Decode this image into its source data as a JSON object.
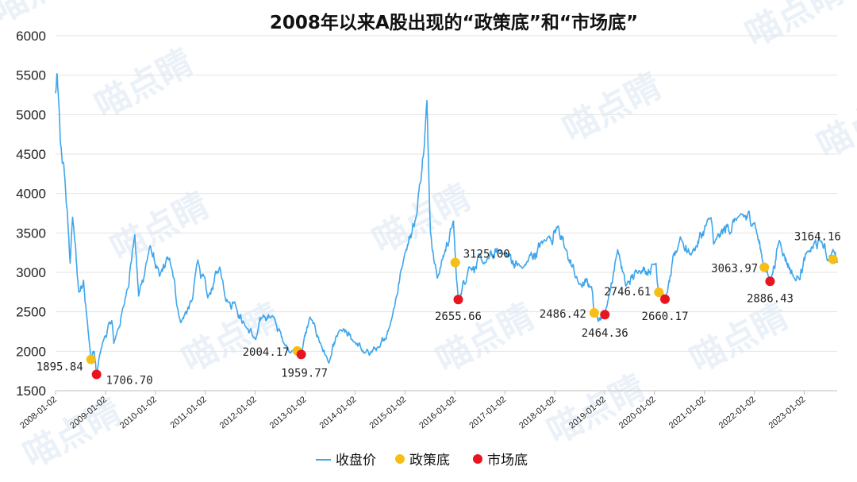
{
  "watermark": "喵点睛",
  "chart_data": {
    "type": "line",
    "title": "2008年以来A股出现的“政策底”和“市场底”",
    "xlabel": "",
    "ylabel": "",
    "ylim": [
      1500,
      6000
    ],
    "y_ticks": [
      1500,
      2000,
      2500,
      3000,
      3500,
      4000,
      4500,
      5000,
      5500,
      6000
    ],
    "x_range": [
      "2008-01-02",
      "2023-08-31"
    ],
    "x_ticks": [
      "2008-01-02",
      "2009-01-02",
      "2010-01-02",
      "2011-01-02",
      "2012-01-02",
      "2013-01-02",
      "2014-01-02",
      "2015-01-02",
      "2016-01-02",
      "2017-01-02",
      "2018-01-02",
      "2019-01-02",
      "2020-01-02",
      "2021-01-02",
      "2022-01-02",
      "2023-01-02"
    ],
    "grid": true,
    "legend_position": "bottom",
    "colors": {
      "line": "#3ea6ec",
      "policy_bottom": "#f5bf18",
      "market_bottom": "#e8141e"
    },
    "series": [
      {
        "name": "收盘价",
        "type": "line",
        "points": [
          [
            "2008-01-02",
            5272
          ],
          [
            "2008-01-15",
            5497
          ],
          [
            "2008-02-05",
            4672
          ],
          [
            "2008-03-10",
            4200
          ],
          [
            "2008-04-18",
            3116
          ],
          [
            "2008-05-06",
            3700
          ],
          [
            "2008-06-20",
            2748
          ],
          [
            "2008-07-25",
            2900
          ],
          [
            "2008-08-20",
            2400
          ],
          [
            "2008-09-18",
            1895
          ],
          [
            "2008-10-10",
            2000
          ],
          [
            "2008-10-28",
            1706
          ],
          [
            "2008-12-10",
            2100
          ],
          [
            "2009-02-17",
            2389
          ],
          [
            "2009-03-03",
            2100
          ],
          [
            "2009-05-20",
            2600
          ],
          [
            "2009-08-04",
            3478
          ],
          [
            "2009-09-01",
            2700
          ],
          [
            "2009-11-24",
            3338
          ],
          [
            "2010-02-01",
            2950
          ],
          [
            "2010-04-15",
            3181
          ],
          [
            "2010-07-05",
            2363
          ],
          [
            "2010-09-30",
            2656
          ],
          [
            "2010-11-08",
            3159
          ],
          [
            "2011-01-20",
            2677
          ],
          [
            "2011-04-18",
            3067
          ],
          [
            "2011-06-20",
            2621
          ],
          [
            "2011-08-05",
            2626
          ],
          [
            "2011-10-21",
            2319
          ],
          [
            "2012-01-06",
            2148
          ],
          [
            "2012-03-02",
            2460
          ],
          [
            "2012-05-07",
            2450
          ],
          [
            "2012-07-31",
            2100
          ],
          [
            "2012-09-26",
            2004
          ],
          [
            "2012-12-03",
            1959
          ],
          [
            "2013-02-06",
            2434
          ],
          [
            "2013-06-25",
            1849
          ],
          [
            "2013-09-12",
            2270
          ],
          [
            "2013-12-31",
            2115
          ],
          [
            "2014-03-12",
            1974
          ],
          [
            "2014-07-01",
            2050
          ],
          [
            "2014-09-15",
            2330
          ],
          [
            "2014-12-31",
            3234
          ],
          [
            "2015-03-31",
            3747
          ],
          [
            "2015-06-12",
            5178
          ],
          [
            "2015-07-08",
            3507
          ],
          [
            "2015-08-26",
            2927
          ],
          [
            "2015-12-23",
            3651
          ],
          [
            "2016-01-27",
            2655
          ],
          [
            "2016-01-11",
            3016
          ],
          [
            "2016-04-13",
            3066
          ],
          [
            "2016-08-15",
            3125
          ],
          [
            "2016-11-29",
            3282
          ],
          [
            "2017-05-10",
            3052
          ],
          [
            "2017-11-13",
            3447
          ],
          [
            "2018-01-29",
            3587
          ],
          [
            "2018-03-12",
            3326
          ],
          [
            "2018-06-29",
            2847
          ],
          [
            "2018-09-28",
            2821
          ],
          [
            "2018-10-18",
            2486
          ],
          [
            "2019-01-04",
            2464
          ],
          [
            "2019-04-08",
            3288
          ],
          [
            "2019-06-06",
            2827
          ],
          [
            "2019-09-10",
            3021
          ],
          [
            "2020-01-13",
            3115
          ],
          [
            "2020-02-03",
            2746
          ],
          [
            "2020-03-23",
            2660
          ],
          [
            "2020-07-09",
            3450
          ],
          [
            "2020-09-25",
            3219
          ],
          [
            "2021-02-18",
            3696
          ],
          [
            "2021-03-09",
            3359
          ],
          [
            "2021-09-13",
            3715
          ],
          [
            "2022-01-04",
            3632
          ],
          [
            "2022-03-15",
            3063
          ],
          [
            "2022-04-26",
            2886
          ],
          [
            "2022-07-04",
            3405
          ],
          [
            "2022-10-31",
            2893
          ],
          [
            "2023-01-30",
            3269
          ],
          [
            "2023-05-09",
            3395
          ],
          [
            "2023-06-26",
            3150
          ],
          [
            "2023-07-31",
            3291
          ],
          [
            "2023-08-28",
            3164
          ],
          [
            "2023-08-31",
            3120
          ]
        ]
      },
      {
        "name": "政策底",
        "type": "scatter",
        "points": [
          {
            "date": "2008-09-18",
            "value": 1895.84,
            "label": "1895.84"
          },
          {
            "date": "2012-11-05",
            "value": 2004.17,
            "label": "2004.17"
          },
          {
            "date": "2016-01-05",
            "value": 3125.0,
            "label": "3125.00"
          },
          {
            "date": "2018-10-18",
            "value": 2486.42,
            "label": "2486.42"
          },
          {
            "date": "2020-02-03",
            "value": 2746.61,
            "label": "2746.61"
          },
          {
            "date": "2022-03-16",
            "value": 3063.97,
            "label": "3063.97"
          },
          {
            "date": "2023-08-01",
            "value": 3164.16,
            "label": "3164.16"
          }
        ]
      },
      {
        "name": "市场底",
        "type": "scatter",
        "points": [
          {
            "date": "2008-10-28",
            "value": 1706.7,
            "label": "1706.70"
          },
          {
            "date": "2012-12-04",
            "value": 1959.77,
            "label": "1959.77"
          },
          {
            "date": "2016-01-27",
            "value": 2655.66,
            "label": "2655.66"
          },
          {
            "date": "2019-01-04",
            "value": 2464.36,
            "label": "2464.36"
          },
          {
            "date": "2020-03-19",
            "value": 2660.17,
            "label": "2660.17"
          },
          {
            "date": "2022-04-27",
            "value": 2886.43,
            "label": "2886.43"
          }
        ]
      }
    ]
  }
}
